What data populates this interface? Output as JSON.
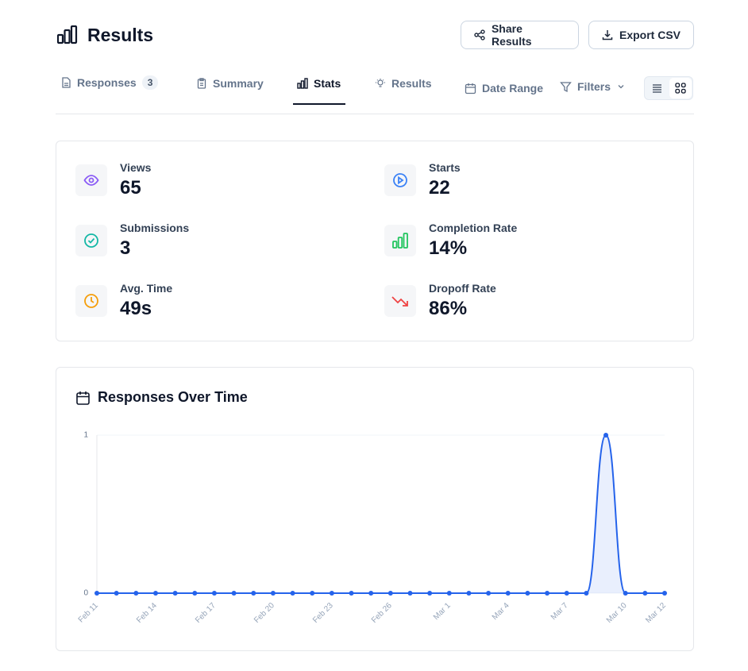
{
  "header": {
    "title": "Results",
    "buttons": [
      "Share Results",
      "Export CSV"
    ]
  },
  "tabs": [
    {
      "label": "Responses",
      "count": "3"
    },
    {
      "label": "Summary"
    },
    {
      "label": "Stats"
    },
    {
      "label": "Results"
    }
  ],
  "toolbar": {
    "date_range": "Date Range",
    "filters": "Filters"
  },
  "stats": [
    {
      "label": "Views",
      "value": "65"
    },
    {
      "label": "Starts",
      "value": "22"
    },
    {
      "label": "Submissions",
      "value": "3"
    },
    {
      "label": "Completion Rate",
      "value": "14%"
    },
    {
      "label": "Avg. Time",
      "value": "49s"
    },
    {
      "label": "Dropoff Rate",
      "value": "86%"
    }
  ],
  "chart_data": {
    "type": "area",
    "title": "Responses Over Time",
    "categories": [
      "Feb 11",
      null,
      null,
      "Feb 14",
      null,
      null,
      "Feb 17",
      null,
      null,
      "Feb 20",
      null,
      null,
      "Feb 23",
      null,
      null,
      "Feb 26",
      null,
      null,
      "Mar 1",
      null,
      null,
      "Mar 4",
      null,
      null,
      "Mar 7",
      null,
      null,
      "Mar 10",
      null,
      "Mar 12"
    ],
    "series": [
      {
        "color": "#2563eb",
        "values": [
          0,
          0,
          0,
          0,
          0,
          0,
          0,
          0,
          0,
          0,
          0,
          0,
          0,
          0,
          0,
          0,
          0,
          0,
          0,
          0,
          0,
          0,
          0,
          0,
          0,
          0,
          1,
          0,
          0,
          0
        ]
      }
    ],
    "ylim": [
      0,
      1
    ],
    "yticks": [
      0,
      1
    ],
    "grid": true
  }
}
